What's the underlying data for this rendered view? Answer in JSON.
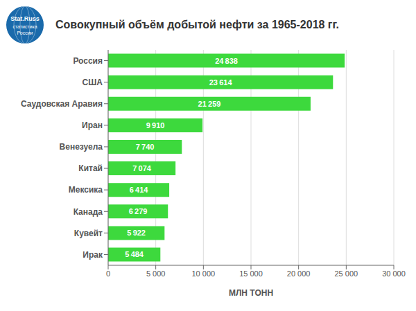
{
  "chart_data": {
    "type": "bar",
    "title": "Совокупный объём добытой нефти за 1965-2018 гг.",
    "orientation": "horizontal",
    "categories": [
      "Ирак",
      "Кувейт",
      "Канада",
      "Мексика",
      "Китай",
      "Венезуела",
      "Иран",
      "Саудовская Аравия",
      "США",
      "Россия"
    ],
    "values": [
      5484,
      5922,
      6279,
      6414,
      7074,
      7740,
      9910,
      21259,
      23614,
      24838
    ],
    "value_labels": [
      "5 484",
      "5 922",
      "6 279",
      "6 414",
      "7 074",
      "7 740",
      "9 910",
      "21 259",
      "23 614",
      "24 838"
    ],
    "data_labels": true,
    "color": "#3dd93d",
    "xlabel": "МЛН ТОНН",
    "xlim": [
      0,
      30000
    ],
    "xticks": [
      0,
      {
        "value": 5000,
        "label": "5 000"
      },
      {
        "value": 10000,
        "label": "10 000"
      },
      {
        "value": 15000,
        "label": "15 000"
      },
      {
        "value": 20000,
        "label": "20 000"
      },
      {
        "value": 25000,
        "label": "25 000"
      },
      {
        "value": 30000,
        "label": "30 000"
      }
    ],
    "grid": true,
    "annotations": [
      "Stat.Russ",
      "статистика",
      "России"
    ]
  }
}
